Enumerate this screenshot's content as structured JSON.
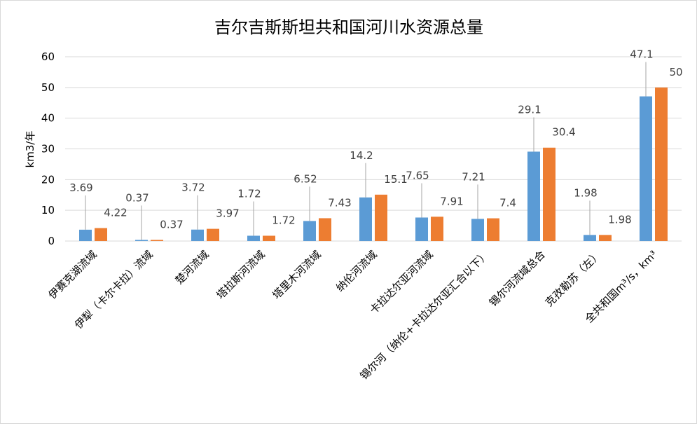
{
  "chart_data": {
    "type": "bar",
    "title": "吉尔吉斯斯坦共和国河川水资源总量",
    "xlabel": "",
    "ylabel": "km3/年",
    "ylim": [
      0,
      60
    ],
    "yticks": [
      0,
      10,
      20,
      30,
      40,
      50,
      60
    ],
    "grid": true,
    "categories": [
      "伊赛克湖流域",
      "伊犁（卡尔卡拉）流域",
      "楚河流域",
      "塔拉斯河流域",
      "塔里木河流域",
      "纳伦河流域",
      "卡拉达尔亚河流域",
      "锡尔河（纳伦+卡拉达尔亚汇合以下）",
      "锡尔河流域总合",
      "克孜勒苏（左）",
      "全共和国m³/s，km³"
    ],
    "series": [
      {
        "name": "系列1",
        "color": "#5b9bd5",
        "values": [
          3.69,
          0.37,
          3.72,
          1.72,
          6.52,
          14.2,
          7.65,
          7.21,
          29.1,
          1.98,
          47.1
        ],
        "labels": [
          "3.69",
          "0.37",
          "3.72",
          "1.72",
          "6.52",
          "14.2",
          "7.65",
          "7.21",
          "29.1",
          "1.98",
          "47.1"
        ]
      },
      {
        "name": "系列2",
        "color": "#ed7d31",
        "values": [
          4.22,
          0.37,
          3.97,
          1.72,
          7.43,
          15.1,
          7.91,
          7.4,
          30.4,
          1.98,
          50
        ],
        "labels": [
          "4.22",
          "0.37",
          "3.97",
          "1.72",
          "7.43",
          "15.1",
          "7.91",
          "7.4",
          "30.4",
          "1.98",
          "50"
        ]
      }
    ]
  }
}
